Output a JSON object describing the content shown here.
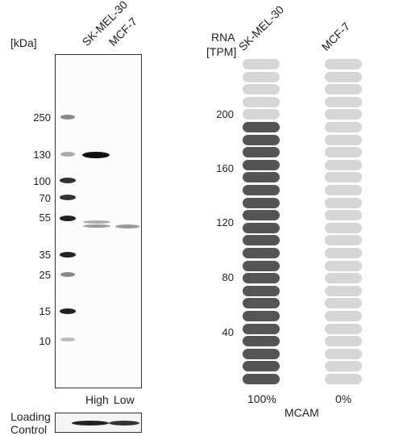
{
  "western_blot": {
    "kda_label": "[kDa]",
    "lane_headers": [
      "SK-MEL-30",
      "MCF-7"
    ],
    "lane_levels": [
      "High",
      "Low"
    ],
    "markers": [
      "250",
      "130",
      "100",
      "70",
      "55",
      "35",
      "25",
      "15",
      "10"
    ],
    "loading_control": "Loading\nControl"
  },
  "rna": {
    "header_line1": "RNA",
    "header_line2": "[TPM]",
    "ticks": [
      "200",
      "160",
      "120",
      "80",
      "40"
    ],
    "cell_lines": [
      {
        "name": "SK-MEL-30",
        "percent": "100%",
        "filled_bars": 21,
        "total_bars": 26
      },
      {
        "name": "MCF-7",
        "percent": "0%",
        "filled_bars": 0,
        "total_bars": 26
      }
    ],
    "gene": "MCAM",
    "colors": {
      "filled": "#555555",
      "empty": "#d6d6d6"
    }
  }
}
